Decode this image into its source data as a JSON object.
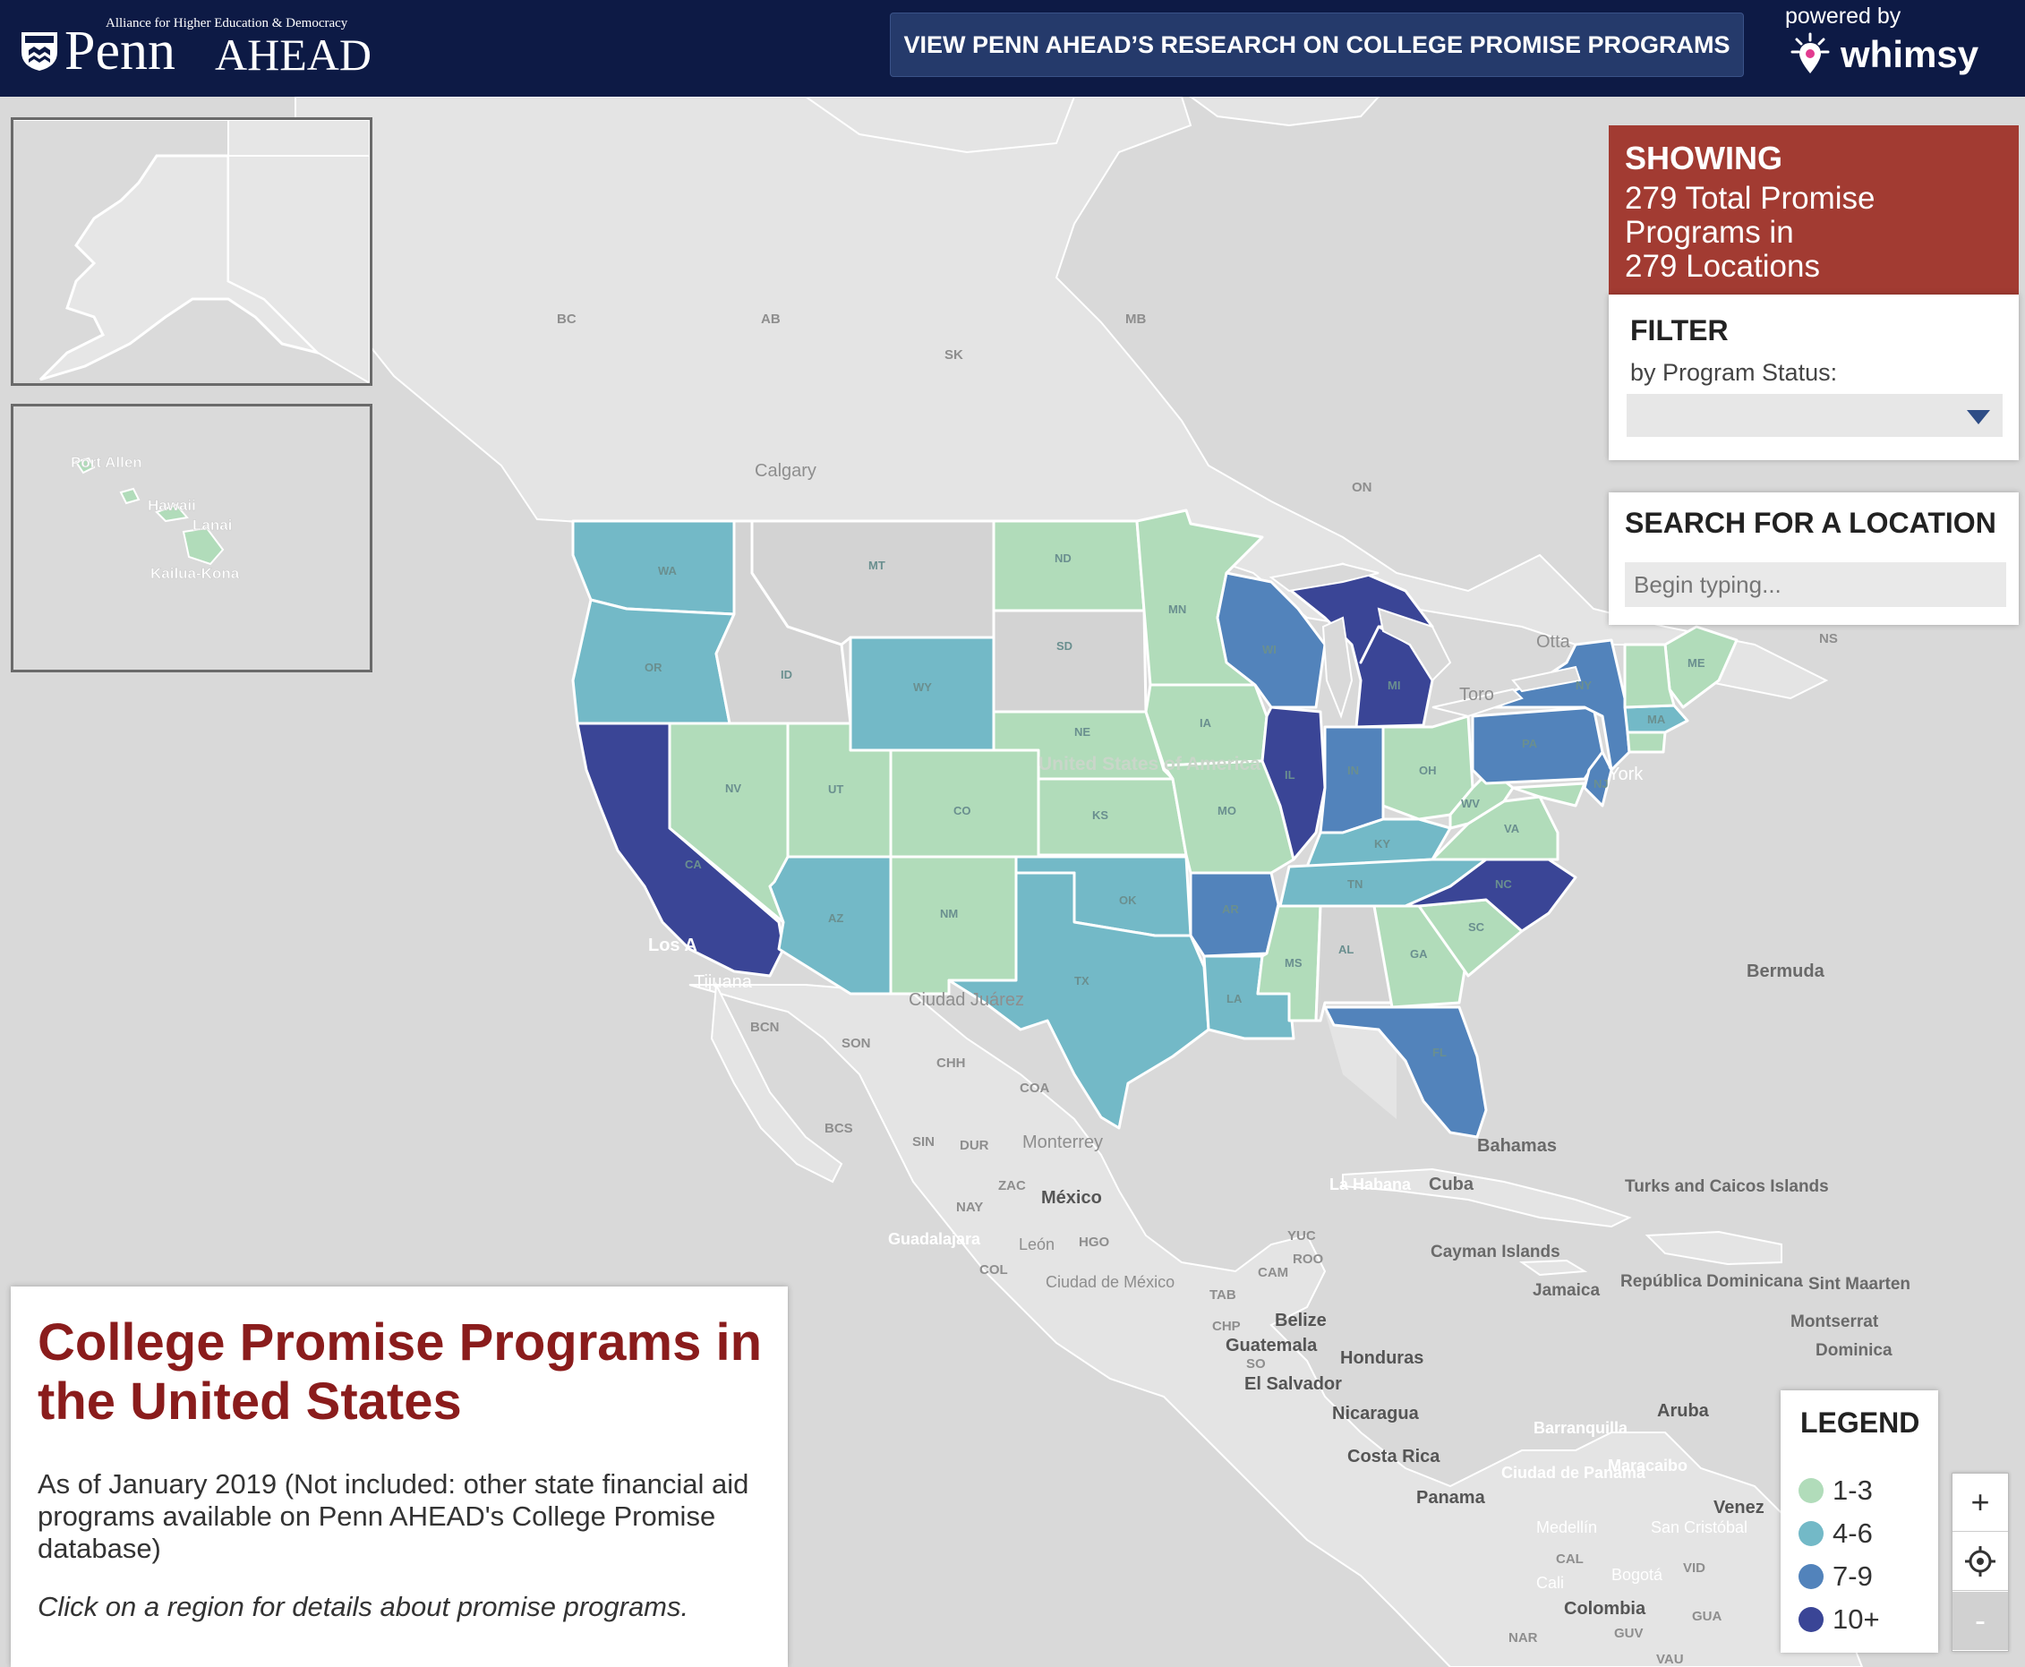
{
  "header": {
    "logo_tagline": "Alliance for Higher Education & Democracy",
    "logo_penn": "Penn",
    "logo_ahead": "AHEAD",
    "research_button_label": "VIEW PENN AHEAD’S RESEARCH ON COLLEGE PROMISE PROGRAMS",
    "powered_by": "powered by",
    "whimsy": "whimsy"
  },
  "showing": {
    "heading": "SHOWING",
    "line1": "279 Total Promise",
    "line2": "Programs in",
    "line3": "279 Locations"
  },
  "filter": {
    "title": "FILTER",
    "subtitle": "by Program Status:",
    "selected": ""
  },
  "search": {
    "title": "SEARCH FOR A LOCATION",
    "placeholder": "Begin typing..."
  },
  "info": {
    "title": "College Promise Programs in the United States",
    "description": "As of January 2019 (Not included: other state financial aid programs available on Penn AHEAD's College Promise database)",
    "hint": "Click on a region for details about promise programs."
  },
  "legend": {
    "title": "LEGEND",
    "items": [
      {
        "label": "1-3",
        "color": "#b1dcba"
      },
      {
        "label": "4-6",
        "color": "#73b9c7"
      },
      {
        "label": "7-9",
        "color": "#5283bb"
      },
      {
        "label": "10+",
        "color": "#3a4596"
      }
    ]
  },
  "zoom": {
    "in_label": "+",
    "out_label": "-"
  },
  "colors": {
    "header_bg": "#0d1a45",
    "showing_bg": "#a23b32",
    "title_red": "#8a1c1c",
    "no_data": "#d3d3d3"
  },
  "state_labels": [
    "WA",
    "OR",
    "CA",
    "NV",
    "ID",
    "MT",
    "WY",
    "UT",
    "CO",
    "AZ",
    "NM",
    "ND",
    "SD",
    "NE",
    "KS",
    "OK",
    "TX",
    "MN",
    "IA",
    "MO",
    "AR",
    "LA",
    "WI",
    "IL",
    "MI",
    "IN",
    "OH",
    "KY",
    "TN",
    "MS",
    "AL",
    "GA",
    "FL",
    "SC",
    "NC",
    "VA",
    "WV",
    "PA",
    "NY",
    "NJ",
    "MA",
    "ME"
  ],
  "map_labels": {
    "bc": "BC",
    "ab": "AB",
    "sk": "SK",
    "mb": "MB",
    "on": "ON",
    "ns": "NS",
    "calgary": "Calgary",
    "toronto": "Toro",
    "ottawa": "Otta",
    "new_york": "York",
    "united_states": "United States of America",
    "bermuda": "Bermuda",
    "bahamas": "Bahamas",
    "los_angeles": "Los A",
    "tijuana": "Tijuana",
    "ciudad_juarez": "Ciudad Juárez",
    "bcn": "BCN",
    "son": "SON",
    "chh": "CHH",
    "coa": "COA",
    "bcs": "BCS",
    "sin": "SIN",
    "dur": "DUR",
    "monterrey": "Monterrey",
    "zac": "ZAC",
    "nay": "NAY",
    "mexico": "México",
    "guadalajara": "Guadalajara",
    "leon": "León",
    "hgo": "HGO",
    "col": "COL",
    "ciudad_de_mexico": "Ciudad de México",
    "yuc": "YUC",
    "roo": "ROO",
    "cam": "CAM",
    "tab": "TAB",
    "chp": "CHP",
    "la_habana": "La Habana",
    "cuba": "Cuba",
    "cayman": "Cayman Islands",
    "jamaica": "Jamaica",
    "turks": "Turks and Caicos Islands",
    "rep_dom": "República Dominicana",
    "sint_maarten": "Sint Maarten",
    "montserrat": "Montserrat",
    "dominica": "Dominica",
    "belize": "Belize",
    "guatemala": "Guatemala",
    "so": "SO",
    "honduras": "Honduras",
    "el_salvador": "El Salvador",
    "nicaragua": "Nicaragua",
    "costa_rica": "Costa Rica",
    "panama": "Panama",
    "aruba": "Aruba",
    "barranquilla": "Barranquilla",
    "ciudad_panama": "Ciudad de Panamá",
    "maracaibo": "Maracaibo",
    "venezuela": "Venez",
    "medellin": "Medellín",
    "san_cristobal": "San Cristóbal",
    "cal": "CAL",
    "bogota": "Bogotá",
    "vid": "VID",
    "cali": "Cali",
    "colombia": "Colombia",
    "gua": "GUA",
    "nar": "NAR",
    "guv": "GUV",
    "vau": "VAU",
    "port_allen": "Port Allen",
    "hawaii": "Hawaii",
    "lanai": "Lanai",
    "kailua_kona": "Kailua-Kona"
  }
}
